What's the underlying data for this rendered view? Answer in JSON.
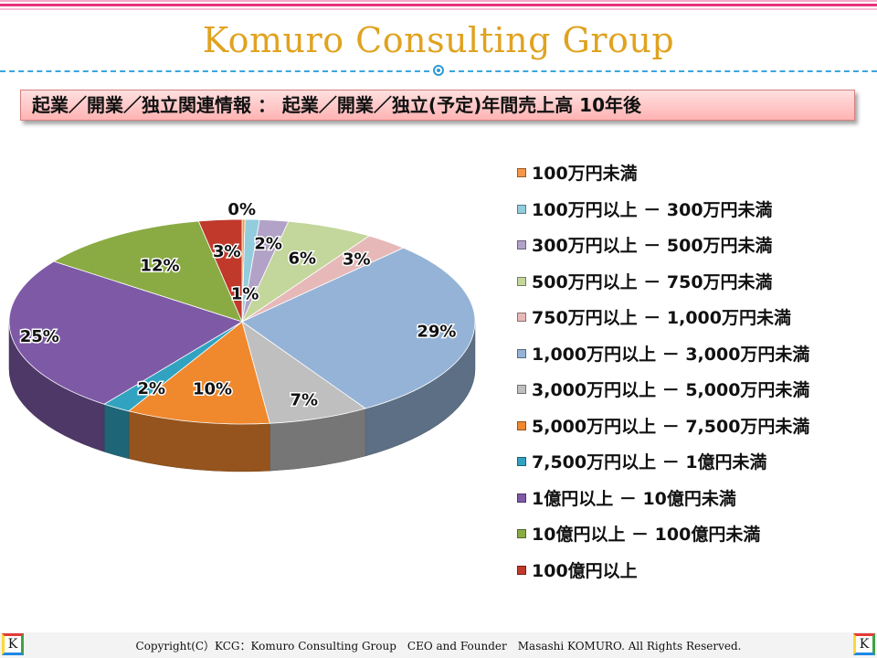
{
  "header": {
    "brand": "Komuro Consulting Group",
    "subtitle": "起業／開業／独立関連情報 ： 起業／開業／独立(予定)年間売上高 10年後"
  },
  "chart_data": {
    "type": "pie",
    "style": "3d",
    "categories": [
      "100万円未満",
      "100万円以上 － 300万円未満",
      "300万円以上 － 500万円未満",
      "500万円以上 － 750万円未満",
      "750万円以上 － 1,000万円未満",
      "1,000万円以上 － 3,000万円未満",
      "3,000万円以上 － 5,000万円未満",
      "5,000万円以上 － 7,500万円未満",
      "7,500万円以上 － 1億円未満",
      "1億円以上 － 10億円未満",
      "10億円以上 － 100億円未満",
      "100億円以上"
    ],
    "values": [
      0.2,
      1,
      2,
      6,
      3,
      29,
      7,
      10,
      2,
      25,
      12,
      3
    ],
    "labels": [
      "0%",
      "1%",
      "2%",
      "6%",
      "3%",
      "29%",
      "7%",
      "10%",
      "2%",
      "25%",
      "12%",
      "3%"
    ],
    "colors": [
      "#f79646",
      "#93cddd",
      "#b3a2c7",
      "#c3d69b",
      "#e6b9b8",
      "#95b3d7",
      "#bfbfbf",
      "#f0882e",
      "#31a3c0",
      "#7e5aa6",
      "#8aab44",
      "#c0392b"
    ],
    "legend_position": "right"
  },
  "footer": {
    "copyright": "Copyright(C）KCG：Komuro Consulting Group　CEO and Founder　Masashi KOMURO. All Rights Reserved.",
    "logo_letter": "K"
  }
}
